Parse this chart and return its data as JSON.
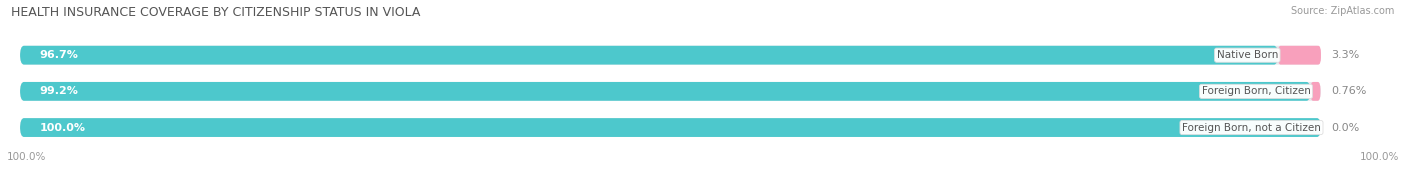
{
  "title": "HEALTH INSURANCE COVERAGE BY CITIZENSHIP STATUS IN VIOLA",
  "source": "Source: ZipAtlas.com",
  "categories": [
    "Native Born",
    "Foreign Born, Citizen",
    "Foreign Born, not a Citizen"
  ],
  "with_coverage": [
    96.7,
    99.2,
    100.0
  ],
  "without_coverage": [
    3.3,
    0.76,
    0.0
  ],
  "with_coverage_labels": [
    "96.7%",
    "99.2%",
    "100.0%"
  ],
  "without_coverage_labels": [
    "3.3%",
    "0.76%",
    "0.0%"
  ],
  "color_with": "#4DC8CC",
  "color_without": "#F07098",
  "color_without_light": "#F8A0BC",
  "bg_color": "#E8E8EC",
  "title_fontsize": 9,
  "source_fontsize": 7,
  "label_fontsize": 8,
  "tick_fontsize": 7.5,
  "x_left_label": "100.0%",
  "x_right_label": "100.0%"
}
